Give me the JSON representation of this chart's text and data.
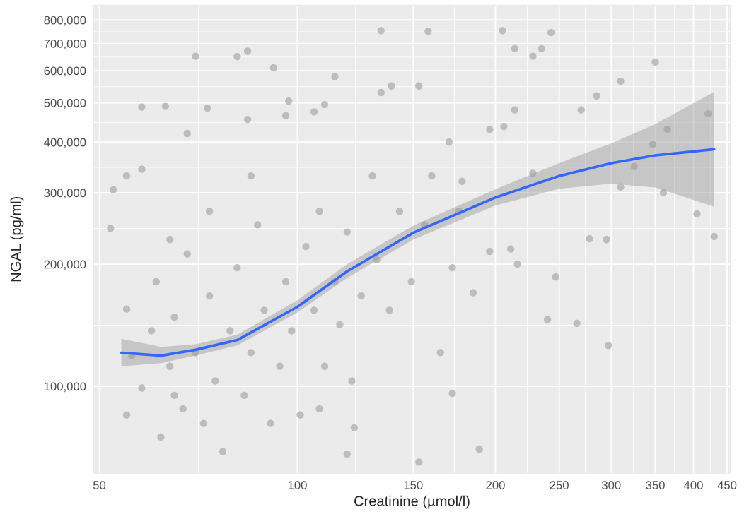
{
  "chart_data": {
    "type": "scatter",
    "xlabel": "Creatinine (µmol/l)",
    "ylabel": "NGAL (pg/ml)",
    "log": "xy",
    "grid": true,
    "legend": false,
    "xlim": [
      49,
      455
    ],
    "ylim": [
      61000,
      870000
    ],
    "xticks": [
      50,
      100,
      150,
      200,
      250,
      300,
      350,
      400,
      450
    ],
    "yticks": [
      {
        "value": 100000,
        "label": "100,000"
      },
      {
        "value": 200000,
        "label": "200,000"
      },
      {
        "value": 300000,
        "label": "300,000"
      },
      {
        "value": 400000,
        "label": "400,000"
      },
      {
        "value": 500000,
        "label": "500,000"
      },
      {
        "value": 600000,
        "label": "600,000"
      },
      {
        "value": 700000,
        "label": "700,000"
      },
      {
        "value": 800000,
        "label": "800,000"
      }
    ],
    "series": [
      {
        "marker": "circle",
        "color": "#adadad",
        "x": [
          70,
          81,
          84,
          92,
          134,
          158,
          205,
          243,
          214,
          235,
          228,
          153,
          189,
          119,
          122,
          172,
          297,
          266,
          240,
          247,
          430,
          405,
          360,
          421,
          350,
          310,
          285,
          270,
          325,
          310,
          278,
          295,
          347,
          365,
          216,
          196,
          185,
          211,
          228,
          206,
          214,
          196,
          178,
          170,
          160,
          153,
          139,
          134,
          114,
          110,
          106,
          97,
          96,
          84,
          73,
          63,
          58,
          68,
          55,
          52,
          52.5,
          55,
          55,
          56,
          58,
          60,
          61,
          62,
          64,
          65,
          67,
          68,
          70,
          72,
          73.5,
          75,
          77,
          79,
          81,
          83,
          85,
          87,
          89,
          91,
          94,
          96,
          98,
          101,
          103,
          106,
          108,
          110,
          114,
          116,
          119,
          121,
          125,
          130,
          132,
          138,
          143,
          149,
          156,
          165,
          172,
          176,
          64,
          58,
          85,
          73.5,
          65,
          108
        ],
        "values": [
          651000,
          650000,
          670000,
          610000,
          753000,
          750000,
          753000,
          745000,
          680000,
          680000,
          651000,
          65000,
          70000,
          68000,
          79000,
          96000,
          126000,
          143000,
          146000,
          186000,
          234000,
          266000,
          300000,
          470000,
          630000,
          565000,
          520000,
          480000,
          348000,
          310000,
          231000,
          230000,
          395000,
          430000,
          200000,
          215000,
          170000,
          218000,
          335000,
          437000,
          480000,
          430000,
          320000,
          400000,
          330000,
          550000,
          550000,
          530000,
          580000,
          495000,
          475000,
          505000,
          465000,
          455000,
          485000,
          490000,
          488000,
          420000,
          330000,
          245000,
          305000,
          155000,
          85000,
          119000,
          99000,
          137000,
          181000,
          75000,
          112000,
          148000,
          88000,
          212000,
          121000,
          81000,
          167000,
          103000,
          69000,
          137000,
          196000,
          95000,
          121000,
          250000,
          154000,
          81000,
          112000,
          181000,
          137000,
          85000,
          221000,
          154000,
          270000,
          112000,
          181000,
          142000,
          240000,
          103000,
          167000,
          330000,
          205000,
          154000,
          270000,
          181000,
          250000,
          121000,
          196000,
          270000,
          230000,
          343000,
          330000,
          270000,
          95000,
          88000
        ]
      },
      {
        "type": "line",
        "color": "#3366ff",
        "x": [
          54,
          62,
          70,
          81,
          100,
          119,
          150,
          200,
          250,
          300,
          350,
          430
        ],
        "values": [
          121000,
          119000,
          123000,
          130000,
          157000,
          192000,
          239000,
          292000,
          330000,
          355000,
          371000,
          384000
        ],
        "lower": [
          112000,
          114000,
          119000,
          126000,
          152000,
          185000,
          230000,
          279000,
          307000,
          316000,
          309000,
          277000
        ],
        "upper": [
          131000,
          125000,
          127000,
          134000,
          163000,
          200000,
          249000,
          306000,
          355000,
          397000,
          443000,
          532000
        ]
      }
    ]
  }
}
